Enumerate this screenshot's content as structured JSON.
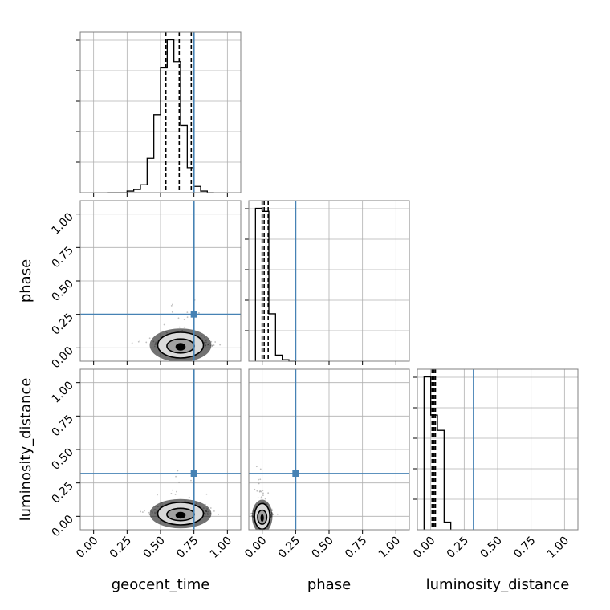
{
  "chart_data": {
    "type": "corner",
    "parameters": [
      "geocent_time",
      "phase",
      "luminosity_distance"
    ],
    "truths": [
      0.75,
      0.25,
      0.32
    ],
    "truth_color": "#4682b4",
    "axis_range": [
      -0.1,
      1.1
    ],
    "ticks": [
      0.0,
      0.25,
      0.5,
      0.75,
      1.0
    ],
    "tick_labels": [
      "0.00",
      "0.25",
      "0.50",
      "0.75",
      "1.00"
    ],
    "grid": true,
    "histograms": [
      {
        "parameter": "geocent_time",
        "bin_edges": [
          0.1,
          0.15,
          0.2,
          0.25,
          0.3,
          0.35,
          0.4,
          0.45,
          0.5,
          0.55,
          0.6,
          0.65,
          0.7,
          0.75,
          0.8,
          0.85,
          0.9
        ],
        "counts": [
          0,
          0,
          0,
          1,
          2,
          5,
          22,
          50,
          80,
          98,
          84,
          43,
          16,
          4,
          1,
          0
        ],
        "quantiles": [
          0.54,
          0.64,
          0.73
        ]
      },
      {
        "parameter": "phase",
        "bin_edges": [
          -0.05,
          0.0,
          0.05,
          0.1,
          0.15,
          0.2,
          0.25
        ],
        "counts": [
          100,
          98,
          31,
          4,
          1,
          0
        ],
        "quantiles": [
          0.0,
          0.015,
          0.045
        ]
      },
      {
        "parameter": "luminosity_distance",
        "bin_edges": [
          -0.05,
          0.0,
          0.05,
          0.1,
          0.15
        ],
        "counts": [
          100,
          75,
          65,
          5
        ],
        "quantiles": [
          0.01,
          0.025,
          0.035
        ]
      }
    ],
    "pairs": [
      {
        "x": "geocent_time",
        "y": "phase",
        "center": [
          0.65,
          0.02
        ],
        "spread": [
          0.09,
          0.03
        ]
      },
      {
        "x": "geocent_time",
        "y": "luminosity_distance",
        "center": [
          0.65,
          0.02
        ],
        "spread": [
          0.09,
          0.025
        ]
      },
      {
        "x": "phase",
        "y": "luminosity_distance",
        "center": [
          0.0,
          0.0
        ],
        "spread": [
          0.03,
          0.03
        ]
      }
    ]
  }
}
